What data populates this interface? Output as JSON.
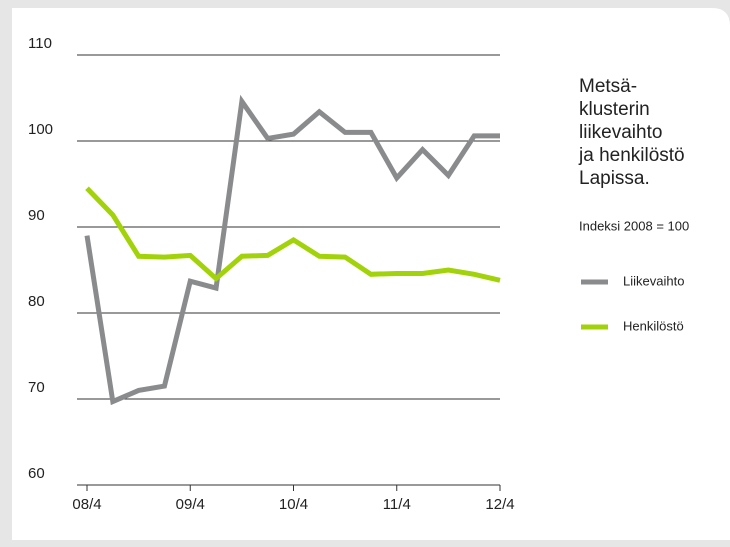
{
  "chart_data": {
    "type": "line",
    "title": [
      "Metsä-",
      "klusterin",
      "liikevaihto",
      "ja henkilöstö",
      "Lapissa."
    ],
    "subtitle": "Indeksi 2008 = 100",
    "categories": [
      "08/4",
      null,
      null,
      null,
      "09/4",
      null,
      null,
      null,
      "10/4",
      null,
      null,
      null,
      "11/4",
      null,
      null,
      null,
      "12/4"
    ],
    "series": [
      {
        "name": "Liikevaihto",
        "color": "#8a8b8d",
        "values": [
          89,
          69.7,
          71,
          71.5,
          83.7,
          82.9,
          104.6,
          100.3,
          100.8,
          103.4,
          101,
          101,
          95.7,
          99,
          96,
          100.6,
          100.6
        ]
      },
      {
        "name": "Henkilöstö",
        "color": "#a2d30a",
        "values": [
          94.5,
          91.4,
          86.6,
          86.5,
          86.7,
          84,
          86.6,
          86.7,
          88.5,
          86.6,
          86.5,
          84.5,
          84.6,
          84.6,
          85,
          84.5,
          83.8
        ]
      }
    ],
    "ylim": [
      60,
      110
    ],
    "yticks": [
      60,
      70,
      80,
      90,
      100,
      110
    ],
    "grid": true,
    "legend": "right"
  }
}
